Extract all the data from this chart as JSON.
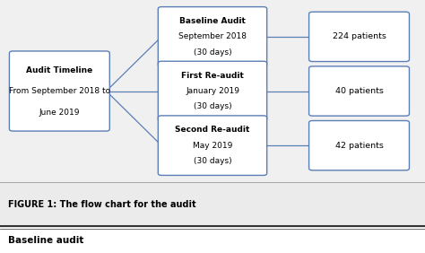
{
  "chart_bg": "#f0f0f0",
  "caption_bg": "#ebebeb",
  "bottom_bg": "#ffffff",
  "box_edge_color": "#5b7fb5",
  "box_face_color": "#ffffff",
  "text_color": "#000000",
  "line_color": "#5b7fb5",
  "figure_caption": "FIGURE 1: The flow chart for the audit",
  "bottom_text": "Baseline audit",
  "left_box": {
    "line1": "Audit Timeline",
    "line2": "From September 2018 to",
    "line3": "June 2019"
  },
  "middle_boxes": [
    {
      "line1": "Baseline Audit",
      "line2": "September 2018",
      "line3": "(30 days)"
    },
    {
      "line1": "First Re-audit",
      "line2": "January 2019",
      "line3": "(30 days)"
    },
    {
      "line1": "Second Re-audit",
      "line2": "May 2019",
      "line3": "(30 days)"
    }
  ],
  "right_boxes": [
    "224 patients",
    "40 patients",
    "42 patients"
  ],
  "figsize": [
    4.74,
    2.82
  ],
  "dpi": 100
}
